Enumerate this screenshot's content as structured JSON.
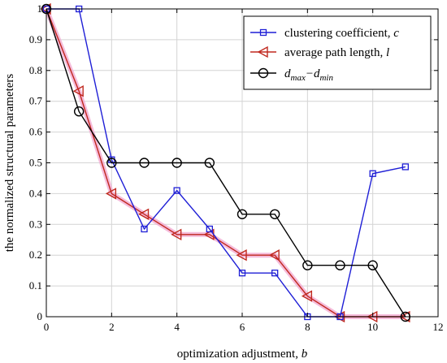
{
  "chart_data": {
    "type": "line",
    "title": "",
    "xlabel": "optimization adjustment, ",
    "xlabel_var": "b",
    "ylabel": "the normalized structural parameters",
    "xlim": [
      0,
      12
    ],
    "ylim": [
      0,
      1
    ],
    "xticks": [
      0,
      2,
      4,
      6,
      8,
      10,
      12
    ],
    "yticks": [
      0,
      0.1,
      0.2,
      0.3,
      0.4,
      0.5,
      0.6,
      0.7,
      0.8,
      0.9,
      1
    ],
    "grid": true,
    "legend_position": "top-right",
    "x": [
      0,
      1,
      2,
      3,
      4,
      5,
      6,
      7,
      8,
      9,
      10,
      11
    ],
    "series": [
      {
        "name": "clustering coefficient, ",
        "name_var": "c",
        "color": "#1f1fd6",
        "marker": "square",
        "values": [
          1,
          1,
          0.51,
          0.285,
          0.41,
          0.285,
          0.142,
          0.142,
          0,
          0,
          0.465,
          0.487
        ]
      },
      {
        "name": "average path length, ",
        "name_var": "l",
        "color": "#c0281e",
        "marker": "triangle-left",
        "values": [
          1,
          0.733,
          0.4,
          0.333,
          0.267,
          0.267,
          0.2,
          0.2,
          0.067,
          0,
          0,
          0
        ]
      },
      {
        "name": "d",
        "name_sub1": "max",
        "name_mid": "−d",
        "name_sub2": "min",
        "color": "#000000",
        "marker": "circle",
        "values": [
          1,
          0.667,
          0.5,
          0.5,
          0.5,
          0.5,
          0.333,
          0.333,
          0.167,
          0.167,
          0.167,
          0
        ]
      }
    ]
  }
}
